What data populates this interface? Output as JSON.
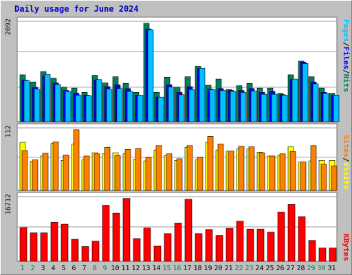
{
  "title": "Daily usage for June 2024",
  "colors": {
    "hits": "#00805c",
    "files": "#0000ff",
    "pages": "#00c0ff",
    "visits": "#ffff00",
    "sites": "#ff8000",
    "kbytes": "#ff0000",
    "weekend_day": "#008040",
    "weekday": "#000000"
  },
  "chart_data": [
    {
      "type": "bar",
      "panel": "top",
      "ymax": 2092,
      "ymax_label": "2092",
      "side_labels": [
        "Pages",
        "/",
        "Files",
        "/",
        "Hits"
      ],
      "categories": [
        "1",
        "2",
        "3",
        "4",
        "5",
        "6",
        "7",
        "8",
        "9",
        "10",
        "11",
        "12",
        "13",
        "14",
        "15",
        "16",
        "17",
        "18",
        "19",
        "20",
        "21",
        "22",
        "23",
        "24",
        "25",
        "26",
        "27",
        "28",
        "29",
        "30",
        "31"
      ],
      "series": [
        {
          "name": "Hits",
          "color_key": "hits",
          "values": [
            990,
            840,
            1060,
            920,
            730,
            710,
            620,
            980,
            820,
            950,
            810,
            620,
            2080,
            620,
            940,
            730,
            950,
            1170,
            770,
            900,
            680,
            760,
            810,
            710,
            710,
            600,
            990,
            1280,
            950,
            710,
            600
          ]
        },
        {
          "name": "Files",
          "color_key": "files",
          "values": [
            880,
            720,
            960,
            820,
            660,
            600,
            560,
            880,
            740,
            780,
            700,
            560,
            1960,
            520,
            780,
            620,
            740,
            1120,
            690,
            700,
            660,
            660,
            700,
            620,
            640,
            570,
            890,
            1260,
            840,
            620,
            560
          ]
        },
        {
          "name": "Pages",
          "color_key": "pages",
          "values": [
            870,
            690,
            1000,
            790,
            640,
            560,
            550,
            890,
            690,
            700,
            640,
            560,
            1940,
            520,
            730,
            570,
            680,
            1130,
            680,
            660,
            640,
            620,
            650,
            580,
            580,
            560,
            900,
            1230,
            800,
            600,
            560
          ]
        }
      ]
    },
    {
      "type": "bar",
      "panel": "middle",
      "ymax": 112,
      "ymax_label": "112",
      "side_labels": [
        "Sites",
        "/",
        "Visits"
      ],
      "categories": [
        "1",
        "2",
        "3",
        "4",
        "5",
        "6",
        "7",
        "8",
        "9",
        "10",
        "11",
        "12",
        "13",
        "14",
        "15",
        "16",
        "17",
        "18",
        "19",
        "20",
        "21",
        "22",
        "23",
        "24",
        "25",
        "26",
        "27",
        "28",
        "29",
        "30",
        "31"
      ],
      "series": [
        {
          "name": "Visits",
          "color_key": "visits",
          "values": [
            88,
            53,
            63,
            86,
            55,
            85,
            56,
            69,
            67,
            69,
            67,
            57,
            54,
            74,
            64,
            55,
            79,
            56,
            88,
            74,
            72,
            76,
            76,
            70,
            63,
            64,
            80,
            52,
            54,
            55,
            55
          ]
        },
        {
          "name": "Sites",
          "color_key": "sites",
          "values": [
            73,
            56,
            68,
            89,
            65,
            111,
            63,
            67,
            79,
            64,
            75,
            77,
            61,
            82,
            67,
            58,
            82,
            61,
            99,
            85,
            72,
            81,
            80,
            69,
            63,
            67,
            71,
            52,
            82,
            48,
            45
          ]
        }
      ]
    },
    {
      "type": "bar",
      "panel": "bottom",
      "ymax": 16712,
      "ymax_label": "16712",
      "side_labels": [
        "KBytes"
      ],
      "categories": [
        "1",
        "2",
        "3",
        "4",
        "5",
        "6",
        "7",
        "8",
        "9",
        "10",
        "11",
        "12",
        "13",
        "14",
        "15",
        "16",
        "17",
        "18",
        "19",
        "20",
        "21",
        "22",
        "23",
        "24",
        "25",
        "26",
        "27",
        "28",
        "29",
        "30",
        "31"
      ],
      "series": [
        {
          "name": "KBytes",
          "color_key": "kbytes",
          "values": [
            8900,
            7500,
            7500,
            10300,
            9800,
            5800,
            3900,
            5300,
            14800,
            12700,
            16600,
            6000,
            8800,
            4000,
            7300,
            10100,
            16400,
            7300,
            8400,
            6800,
            8700,
            10600,
            8500,
            8500,
            7700,
            13000,
            15000,
            11800,
            5500,
            3500,
            3500
          ]
        }
      ]
    }
  ]
}
